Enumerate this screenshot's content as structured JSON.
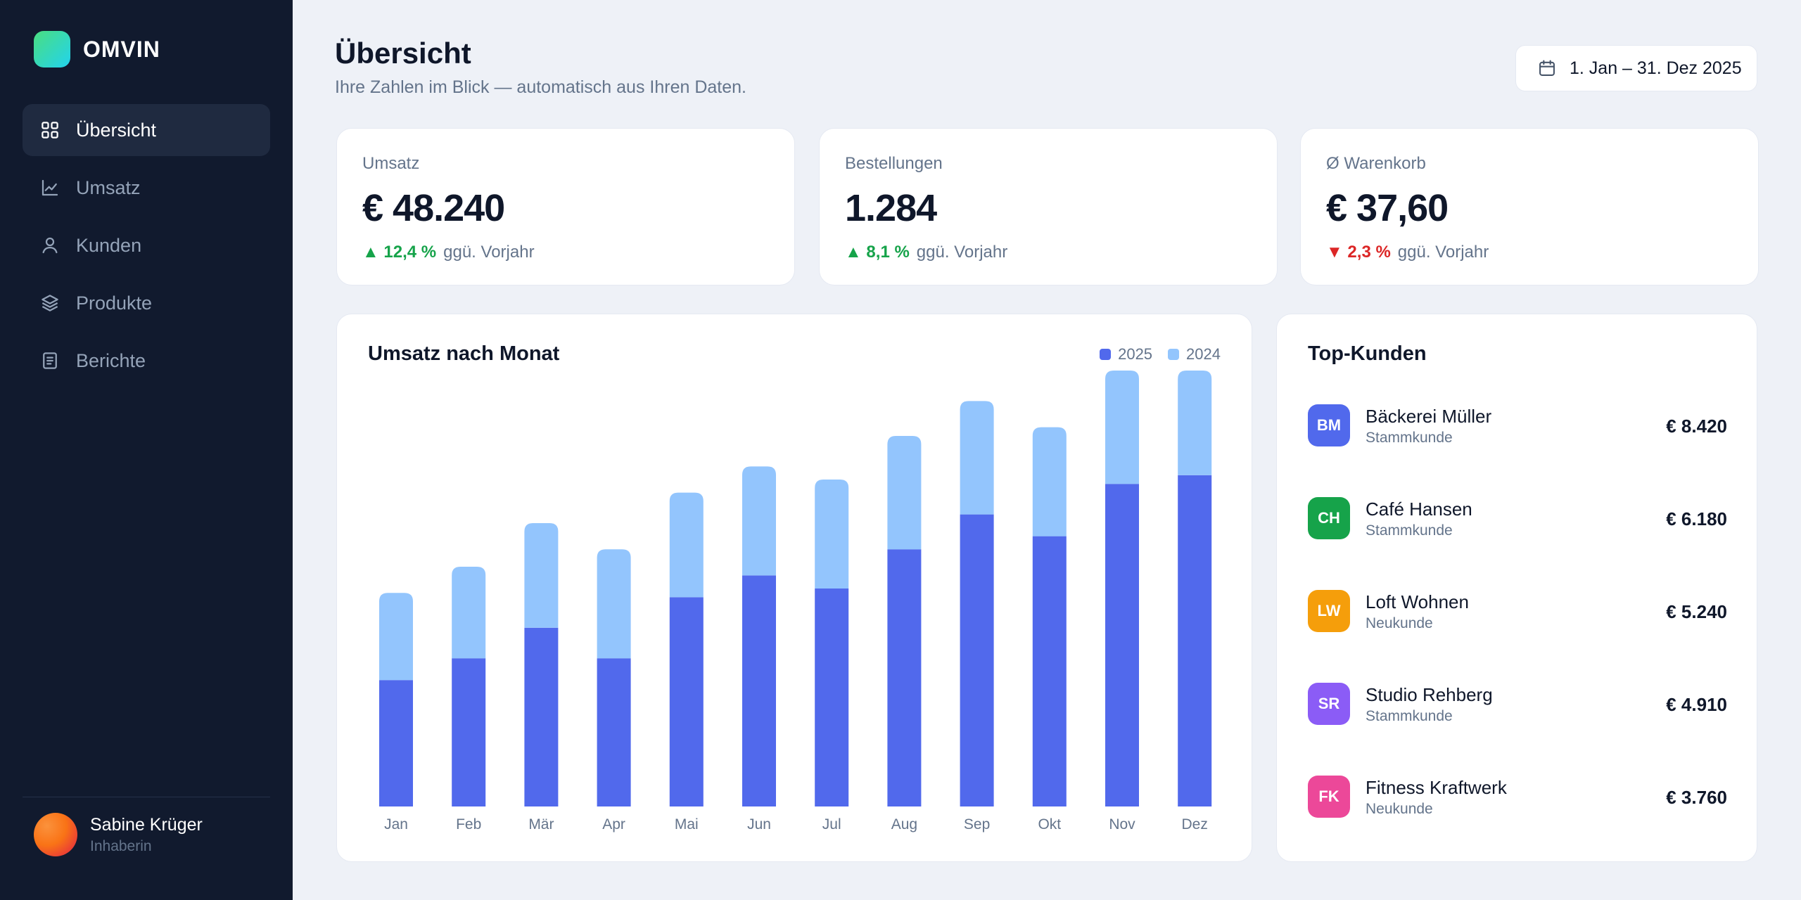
{
  "app": {
    "name": "OMVIN"
  },
  "sidebar": {
    "items": [
      {
        "label": "Übersicht",
        "icon": "grid-icon",
        "active": true
      },
      {
        "label": "Umsatz",
        "icon": "chart-line-icon",
        "active": false
      },
      {
        "label": "Kunden",
        "icon": "user-icon",
        "active": false
      },
      {
        "label": "Produkte",
        "icon": "layers-icon",
        "active": false
      },
      {
        "label": "Berichte",
        "icon": "document-icon",
        "active": false
      }
    ],
    "user": {
      "name": "Sabine Krüger",
      "role": "Inhaberin"
    }
  },
  "header": {
    "title": "Übersicht",
    "subtitle": "Ihre Zahlen im Blick — automatisch aus Ihren Daten.",
    "date_range": "1. Jan – 31. Dez 2025"
  },
  "kpis": [
    {
      "label": "Umsatz",
      "value": "€ 48.240",
      "delta": "▲ 12,4 %",
      "direction": "up",
      "comparison": "ggü. Vorjahr"
    },
    {
      "label": "Bestellungen",
      "value": "1.284",
      "delta": "▲ 8,1 %",
      "direction": "up",
      "comparison": "ggü. Vorjahr"
    },
    {
      "label": "Ø Warenkorb",
      "value": "€ 37,60",
      "delta": "▼ 2,3 %",
      "direction": "down",
      "comparison": "ggü. Vorjahr"
    }
  ],
  "chart_data": {
    "type": "bar",
    "stacked": true,
    "title": "Umsatz nach Monat",
    "categories": [
      "Jan",
      "Feb",
      "Mär",
      "Apr",
      "Mai",
      "Jun",
      "Jul",
      "Aug",
      "Sep",
      "Okt",
      "Nov",
      "Dez"
    ],
    "series": [
      {
        "name": "2025",
        "color": "#5169ec",
        "values": [
          29,
          34,
          41,
          34,
          48,
          53,
          50,
          59,
          67,
          62,
          74,
          76
        ]
      },
      {
        "name": "2024",
        "color": "#93c5fd",
        "values": [
          20,
          21,
          24,
          25,
          24,
          25,
          25,
          26,
          26,
          25,
          26,
          24
        ]
      }
    ],
    "ylim": [
      0,
      100
    ],
    "grid": false,
    "legend_position": "top-right"
  },
  "top_customers": {
    "title": "Top-Kunden",
    "items": [
      {
        "initials": "BM",
        "name": "Bäckerei Müller",
        "type": "Stammkunde",
        "amount": "€ 8.420",
        "color": "#5169ec"
      },
      {
        "initials": "CH",
        "name": "Café Hansen",
        "type": "Stammkunde",
        "amount": "€ 6.180",
        "color": "#16a34a"
      },
      {
        "initials": "LW",
        "name": "Loft Wohnen",
        "type": "Neukunde",
        "amount": "€ 5.240",
        "color": "#f59e0b"
      },
      {
        "initials": "SR",
        "name": "Studio Rehberg",
        "type": "Stammkunde",
        "amount": "€ 4.910",
        "color": "#8b5cf6"
      },
      {
        "initials": "FK",
        "name": "Fitness Kraftwerk",
        "type": "Neukunde",
        "amount": "€ 3.760",
        "color": "#ec4899"
      }
    ]
  }
}
